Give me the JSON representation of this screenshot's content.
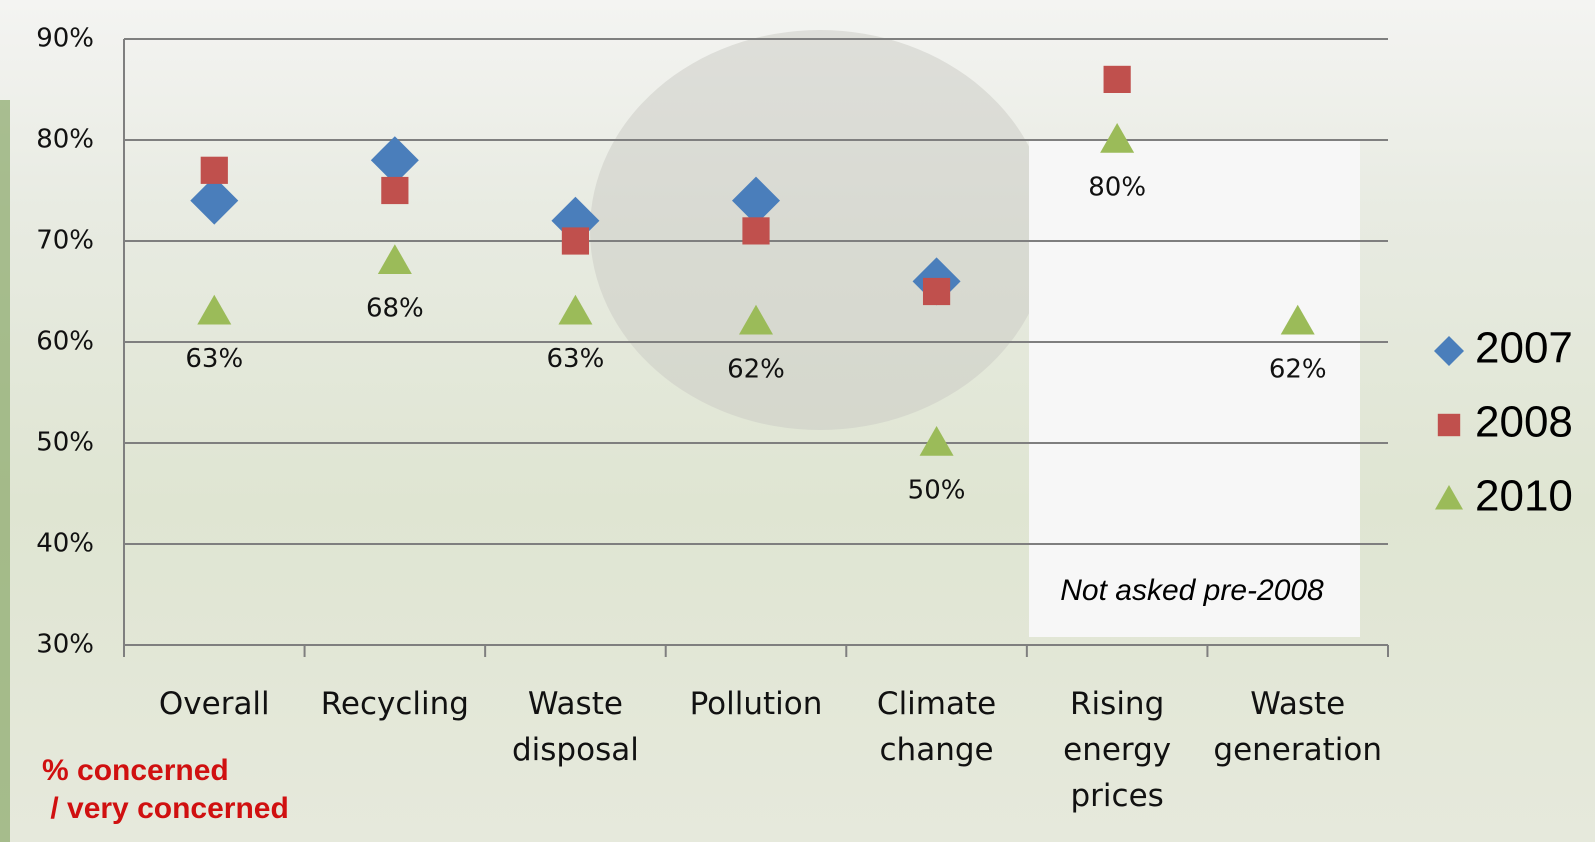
{
  "chart_data": {
    "type": "dot",
    "categories": [
      "Overall",
      "Recycling",
      "Waste disposal",
      "Pollution",
      "Climate change",
      "Rising energy prices",
      "Waste generation"
    ],
    "series": [
      {
        "name": "2007",
        "color": "#4a7ebb",
        "marker": "diamond",
        "values": [
          74,
          78,
          72,
          74,
          66,
          null,
          null
        ]
      },
      {
        "name": "2008",
        "color": "#c0504d",
        "marker": "square",
        "values": [
          77,
          75,
          70,
          71,
          65,
          86,
          null
        ]
      },
      {
        "name": "2010",
        "color": "#9bbb59",
        "marker": "triangle",
        "values": [
          63,
          68,
          63,
          62,
          50,
          80,
          62
        ],
        "value_labels": [
          "63%",
          "68%",
          "63%",
          "62%",
          "50%",
          "80%",
          "62%"
        ]
      }
    ],
    "ylim": [
      30,
      90
    ],
    "yticks": [
      {
        "value": 30,
        "label": "30%"
      },
      {
        "value": 40,
        "label": "40%"
      },
      {
        "value": 50,
        "label": "50%"
      },
      {
        "value": 60,
        "label": "60%"
      },
      {
        "value": 70,
        "label": "70%"
      },
      {
        "value": 80,
        "label": "80%"
      },
      {
        "value": 90,
        "label": "90%"
      }
    ],
    "grid": true,
    "legend": "right",
    "annotations": [
      "Not asked pre-2008",
      "% concerned",
      " / very concerned"
    ]
  }
}
